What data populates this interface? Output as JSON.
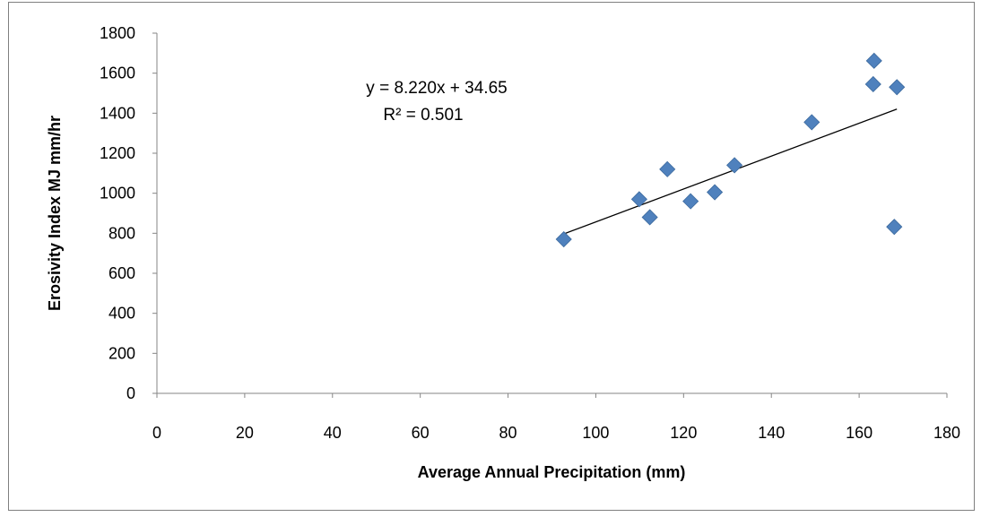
{
  "chart_data": {
    "type": "scatter",
    "title": "",
    "xlabel": "Average Annual Precipitation (mm)",
    "ylabel": "Erosivity Index MJ mm/hr",
    "xlim": [
      0,
      180
    ],
    "ylim": [
      0,
      1800
    ],
    "x_ticks": [
      0,
      20,
      40,
      60,
      80,
      100,
      120,
      140,
      160,
      180
    ],
    "y_ticks": [
      0,
      200,
      400,
      600,
      800,
      1000,
      1200,
      1400,
      1600,
      1800
    ],
    "grid": false,
    "legend": "none",
    "series": [
      {
        "marker": "diamond",
        "color": "#4f81bd",
        "points": [
          {
            "x": 92.7,
            "y": 770
          },
          {
            "x": 109.9,
            "y": 970
          },
          {
            "x": 112.3,
            "y": 880
          },
          {
            "x": 116.3,
            "y": 1120
          },
          {
            "x": 121.6,
            "y": 960
          },
          {
            "x": 127.1,
            "y": 1005
          },
          {
            "x": 131.6,
            "y": 1140
          },
          {
            "x": 149.2,
            "y": 1355
          },
          {
            "x": 163.2,
            "y": 1545
          },
          {
            "x": 163.4,
            "y": 1662
          },
          {
            "x": 168.0,
            "y": 832
          },
          {
            "x": 168.6,
            "y": 1530
          }
        ]
      }
    ],
    "trendline": {
      "type": "linear",
      "slope": 8.22,
      "intercept": 34.65,
      "x_range": [
        92.7,
        168.6
      ],
      "color": "#000000",
      "equation_label": "y = 8.220x + 34.65",
      "r2_label": "R² = 0.501"
    }
  }
}
